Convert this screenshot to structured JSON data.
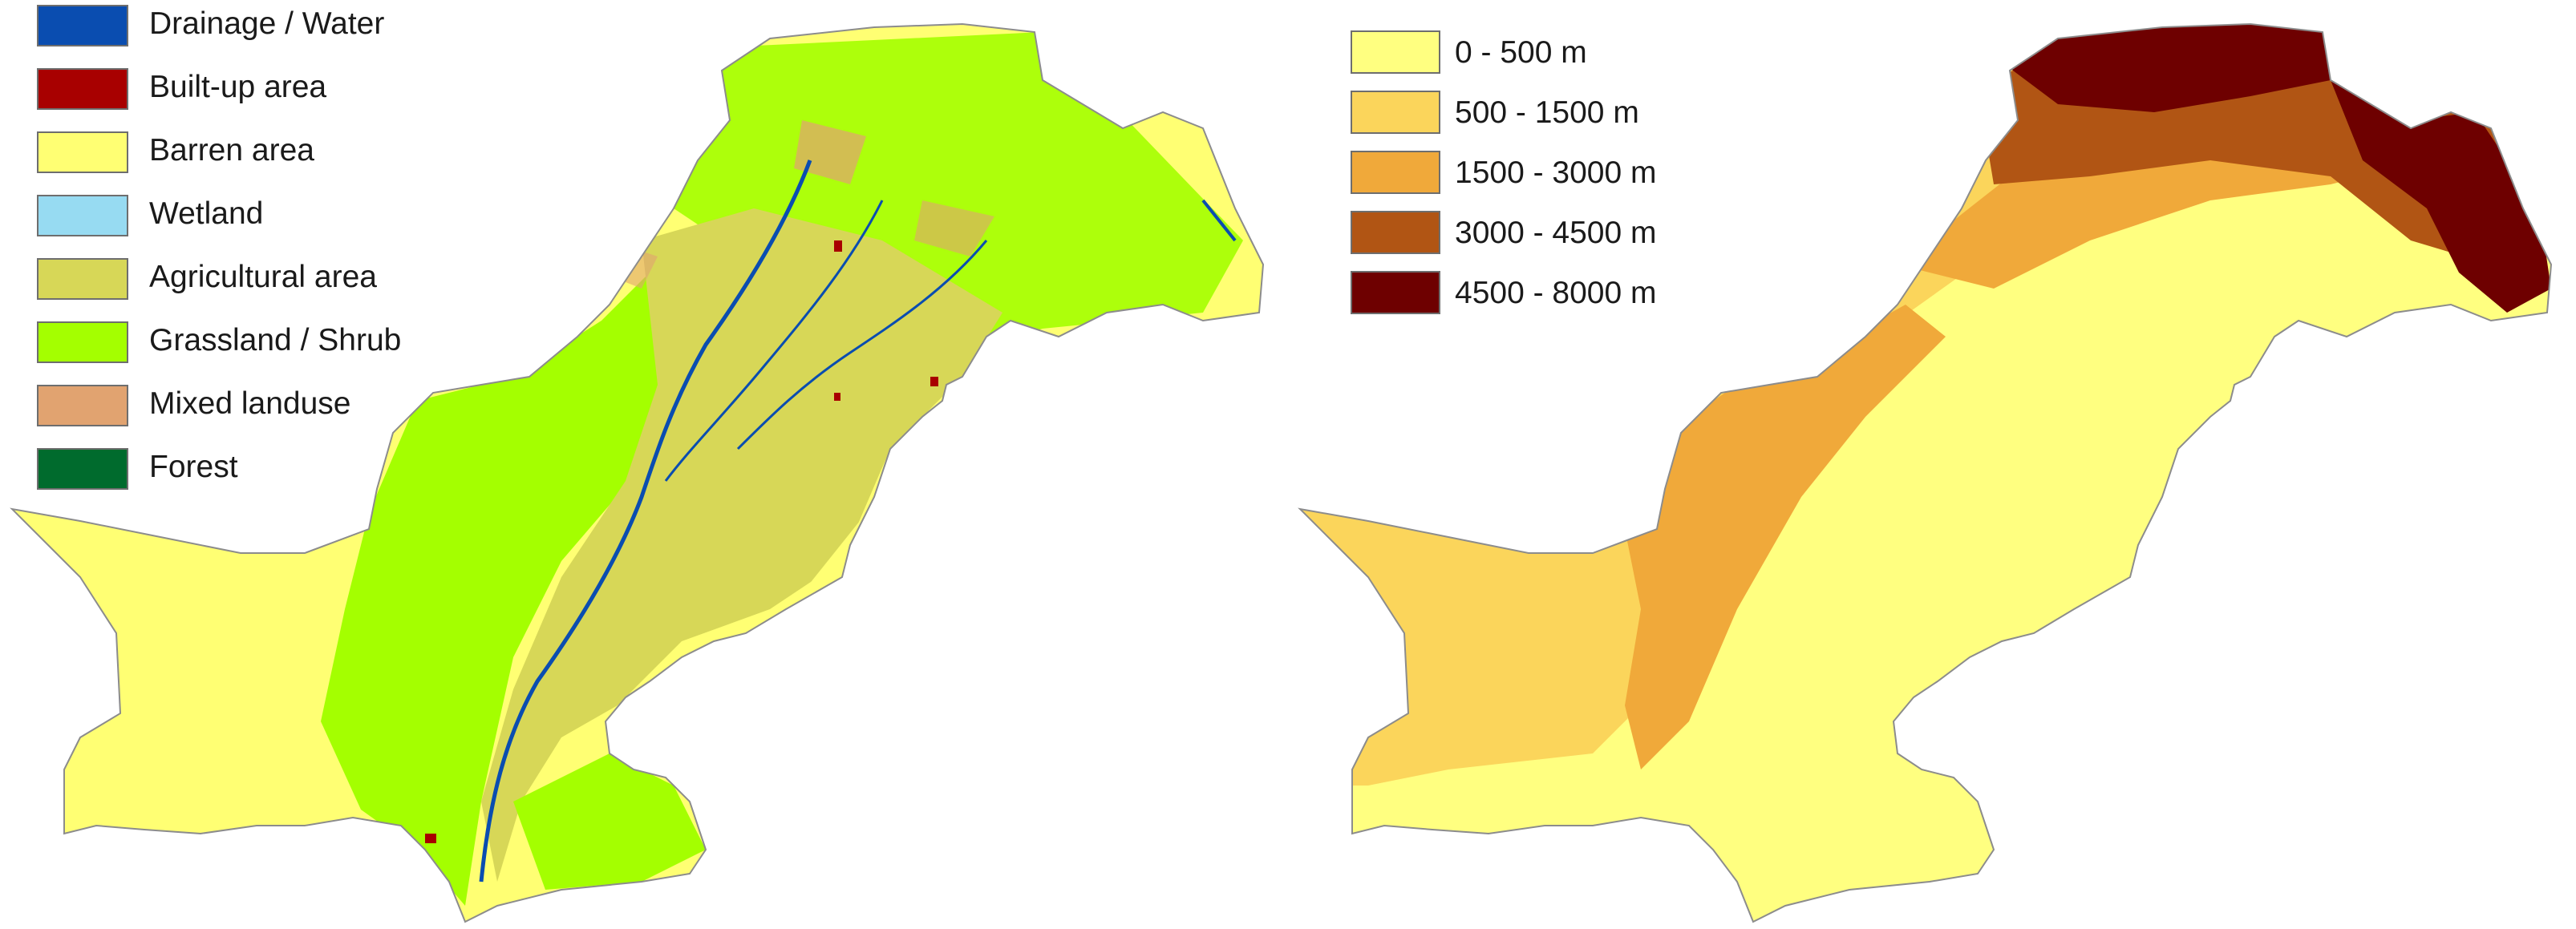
{
  "landuse_map": {
    "legend": [
      {
        "label": "Drainage / Water",
        "color": "#0a4db0"
      },
      {
        "label": "Built-up area",
        "color": "#a80000"
      },
      {
        "label": "Barren area",
        "color": "#ffff73"
      },
      {
        "label": "Wetland",
        "color": "#97dbf2"
      },
      {
        "label": "Agricultural area",
        "color": "#d7d757"
      },
      {
        "label": "Grassland / Shrub",
        "color": "#a4ff00"
      },
      {
        "label": "Mixed landuse",
        "color": "#e1a370"
      },
      {
        "label": "Forest",
        "color": "#006b2d"
      }
    ]
  },
  "elevation_map": {
    "legend": [
      {
        "label": "0 - 500 m",
        "color": "#ffff80"
      },
      {
        "label": "500 - 1500 m",
        "color": "#fbd55b"
      },
      {
        "label": "1500 - 3000 m",
        "color": "#f0a93a"
      },
      {
        "label": "3000 - 4500 m",
        "color": "#b15514"
      },
      {
        "label": "4500 - 8000 m",
        "color": "#6e0000"
      }
    ]
  }
}
